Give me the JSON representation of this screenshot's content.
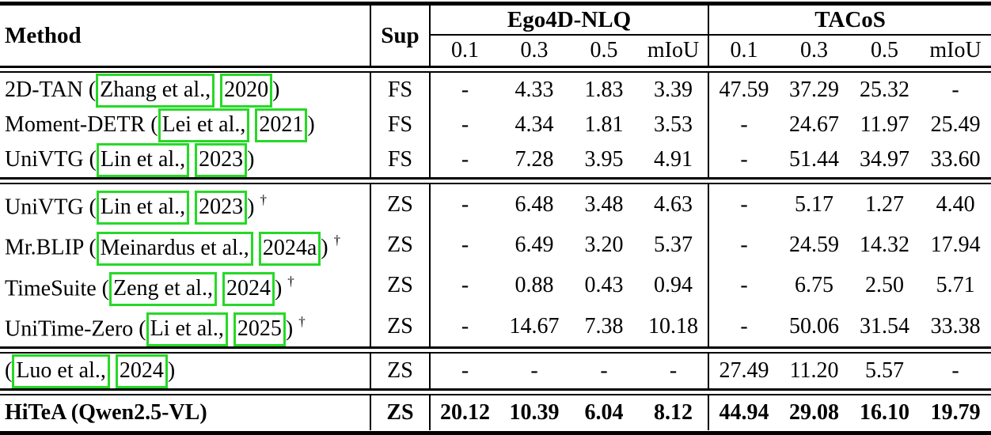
{
  "colors": {
    "citation_box": "#26d926",
    "rule": "#000000"
  },
  "header": {
    "method": "Method",
    "sup": "Sup",
    "groups": [
      {
        "label": "Ego4D-NLQ",
        "subs": [
          "0.1",
          "0.3",
          "0.5",
          "mIoU"
        ]
      },
      {
        "label": "TACoS",
        "subs": [
          "0.1",
          "0.3",
          "0.5",
          "mIoU"
        ]
      }
    ]
  },
  "sections": [
    {
      "rows": [
        {
          "prefix": "2D-TAN (",
          "authors": "Zhang et al.,",
          "year": "2020",
          "suffix": ")",
          "dagger": "",
          "sup": "FS",
          "values": [
            "-",
            "4.33",
            "1.83",
            "3.39",
            "47.59",
            "37.29",
            "25.32",
            "-"
          ]
        },
        {
          "prefix": "Moment-DETR (",
          "authors": "Lei et al.,",
          "year": "2021",
          "suffix": ")",
          "dagger": "",
          "sup": "FS",
          "values": [
            "-",
            "4.34",
            "1.81",
            "3.53",
            "-",
            "24.67",
            "11.97",
            "25.49"
          ]
        },
        {
          "prefix": "UniVTG (",
          "authors": "Lin et al.,",
          "year": "2023",
          "suffix": ")",
          "dagger": "",
          "sup": "FS",
          "values": [
            "-",
            "7.28",
            "3.95",
            "4.91",
            "-",
            "51.44",
            "34.97",
            "33.60"
          ]
        }
      ]
    },
    {
      "rows": [
        {
          "prefix": "UniVTG (",
          "authors": "Lin et al.,",
          "year": "2023",
          "suffix": ")",
          "dagger": "†",
          "sup": "ZS",
          "values": [
            "-",
            "6.48",
            "3.48",
            "4.63",
            "-",
            "5.17",
            "1.27",
            "4.40"
          ]
        },
        {
          "prefix": "Mr.BLIP (",
          "authors": "Meinardus et al.,",
          "year": "2024a",
          "suffix": ")",
          "dagger": "†",
          "sup": "ZS",
          "values": [
            "-",
            "6.49",
            "3.20",
            "5.37",
            "-",
            "24.59",
            "14.32",
            "17.94"
          ]
        },
        {
          "prefix": "TimeSuite (",
          "authors": "Zeng et al.,",
          "year": "2024",
          "suffix": ")",
          "dagger": "†",
          "sup": "ZS",
          "values": [
            "-",
            "0.88",
            "0.43",
            "0.94",
            "-",
            "6.75",
            "2.50",
            "5.71"
          ]
        },
        {
          "prefix": "UniTime-Zero (",
          "authors": "Li et al.,",
          "year": "2025",
          "suffix": ")",
          "dagger": "†",
          "sup": "ZS",
          "values": [
            "-",
            "14.67",
            "7.38",
            "10.18",
            "-",
            "50.06",
            "31.54",
            "33.38"
          ]
        }
      ]
    },
    {
      "rows": [
        {
          "prefix": "(",
          "authors": "Luo et al.,",
          "year": "2024",
          "suffix": ")",
          "dagger": "",
          "sup": "ZS",
          "values": [
            "-",
            "-",
            "-",
            "-",
            "27.49",
            "11.20",
            "5.57",
            "-"
          ]
        }
      ]
    },
    {
      "rows": [
        {
          "prefix": "HiTeA (Qwen2.5-VL)",
          "authors": "",
          "year": "",
          "suffix": "",
          "dagger": "",
          "sup": "ZS",
          "emphasis": true,
          "values": [
            "20.12",
            "10.39",
            "6.04",
            "8.12",
            "44.94",
            "29.08",
            "16.10",
            "19.79"
          ]
        }
      ]
    }
  ]
}
